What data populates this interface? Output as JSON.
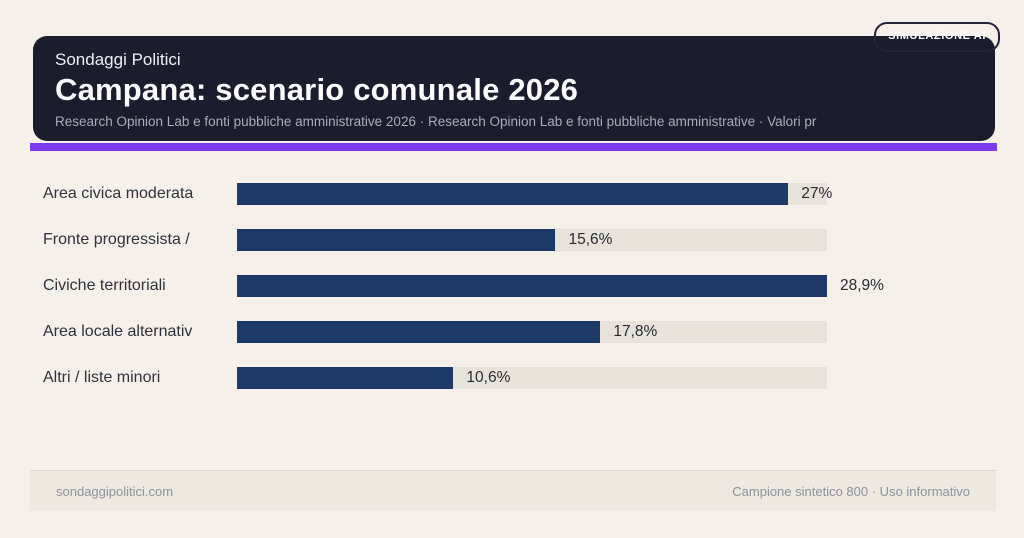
{
  "badge": "SIMULAZIONE AI",
  "header": {
    "brand": "Sondaggi Politici",
    "title": "Campana: scenario comunale 2026",
    "subtitle": "Research Opinion Lab e fonti pubbliche amministrative 2026 · Research Opinion Lab e fonti pubbliche amministrative · Valori pr"
  },
  "chart_data": {
    "type": "bar",
    "orientation": "horizontal",
    "categories": [
      "Area civica moderata",
      "Fronte progressista /",
      "Civiche territoriali",
      "Area locale alternativ",
      "Altri / liste minori"
    ],
    "values": [
      27,
      15.6,
      28.9,
      17.8,
      10.6
    ],
    "value_labels": [
      "27%",
      "15,6%",
      "28,9%",
      "17,8%",
      "10,6%"
    ],
    "xlim": [
      0,
      28.9
    ],
    "unit": "%",
    "grid": false,
    "legend": false,
    "bar_color": "#1e3a68",
    "track_color": "#e6e3db"
  },
  "footer": {
    "left": "sondaggipolitici.com",
    "right": "Campione sintetico 800 · Uso informativo"
  },
  "colors": {
    "background": "#f5f0e9",
    "header_card": "#1b1c2e",
    "accent_stripe": "#7c3aed",
    "bar": "#1e3a68",
    "track": "#e6e3db",
    "footer_band": "#ece9e1",
    "label_text": "#2e333d",
    "muted_text": "#8d929b"
  }
}
